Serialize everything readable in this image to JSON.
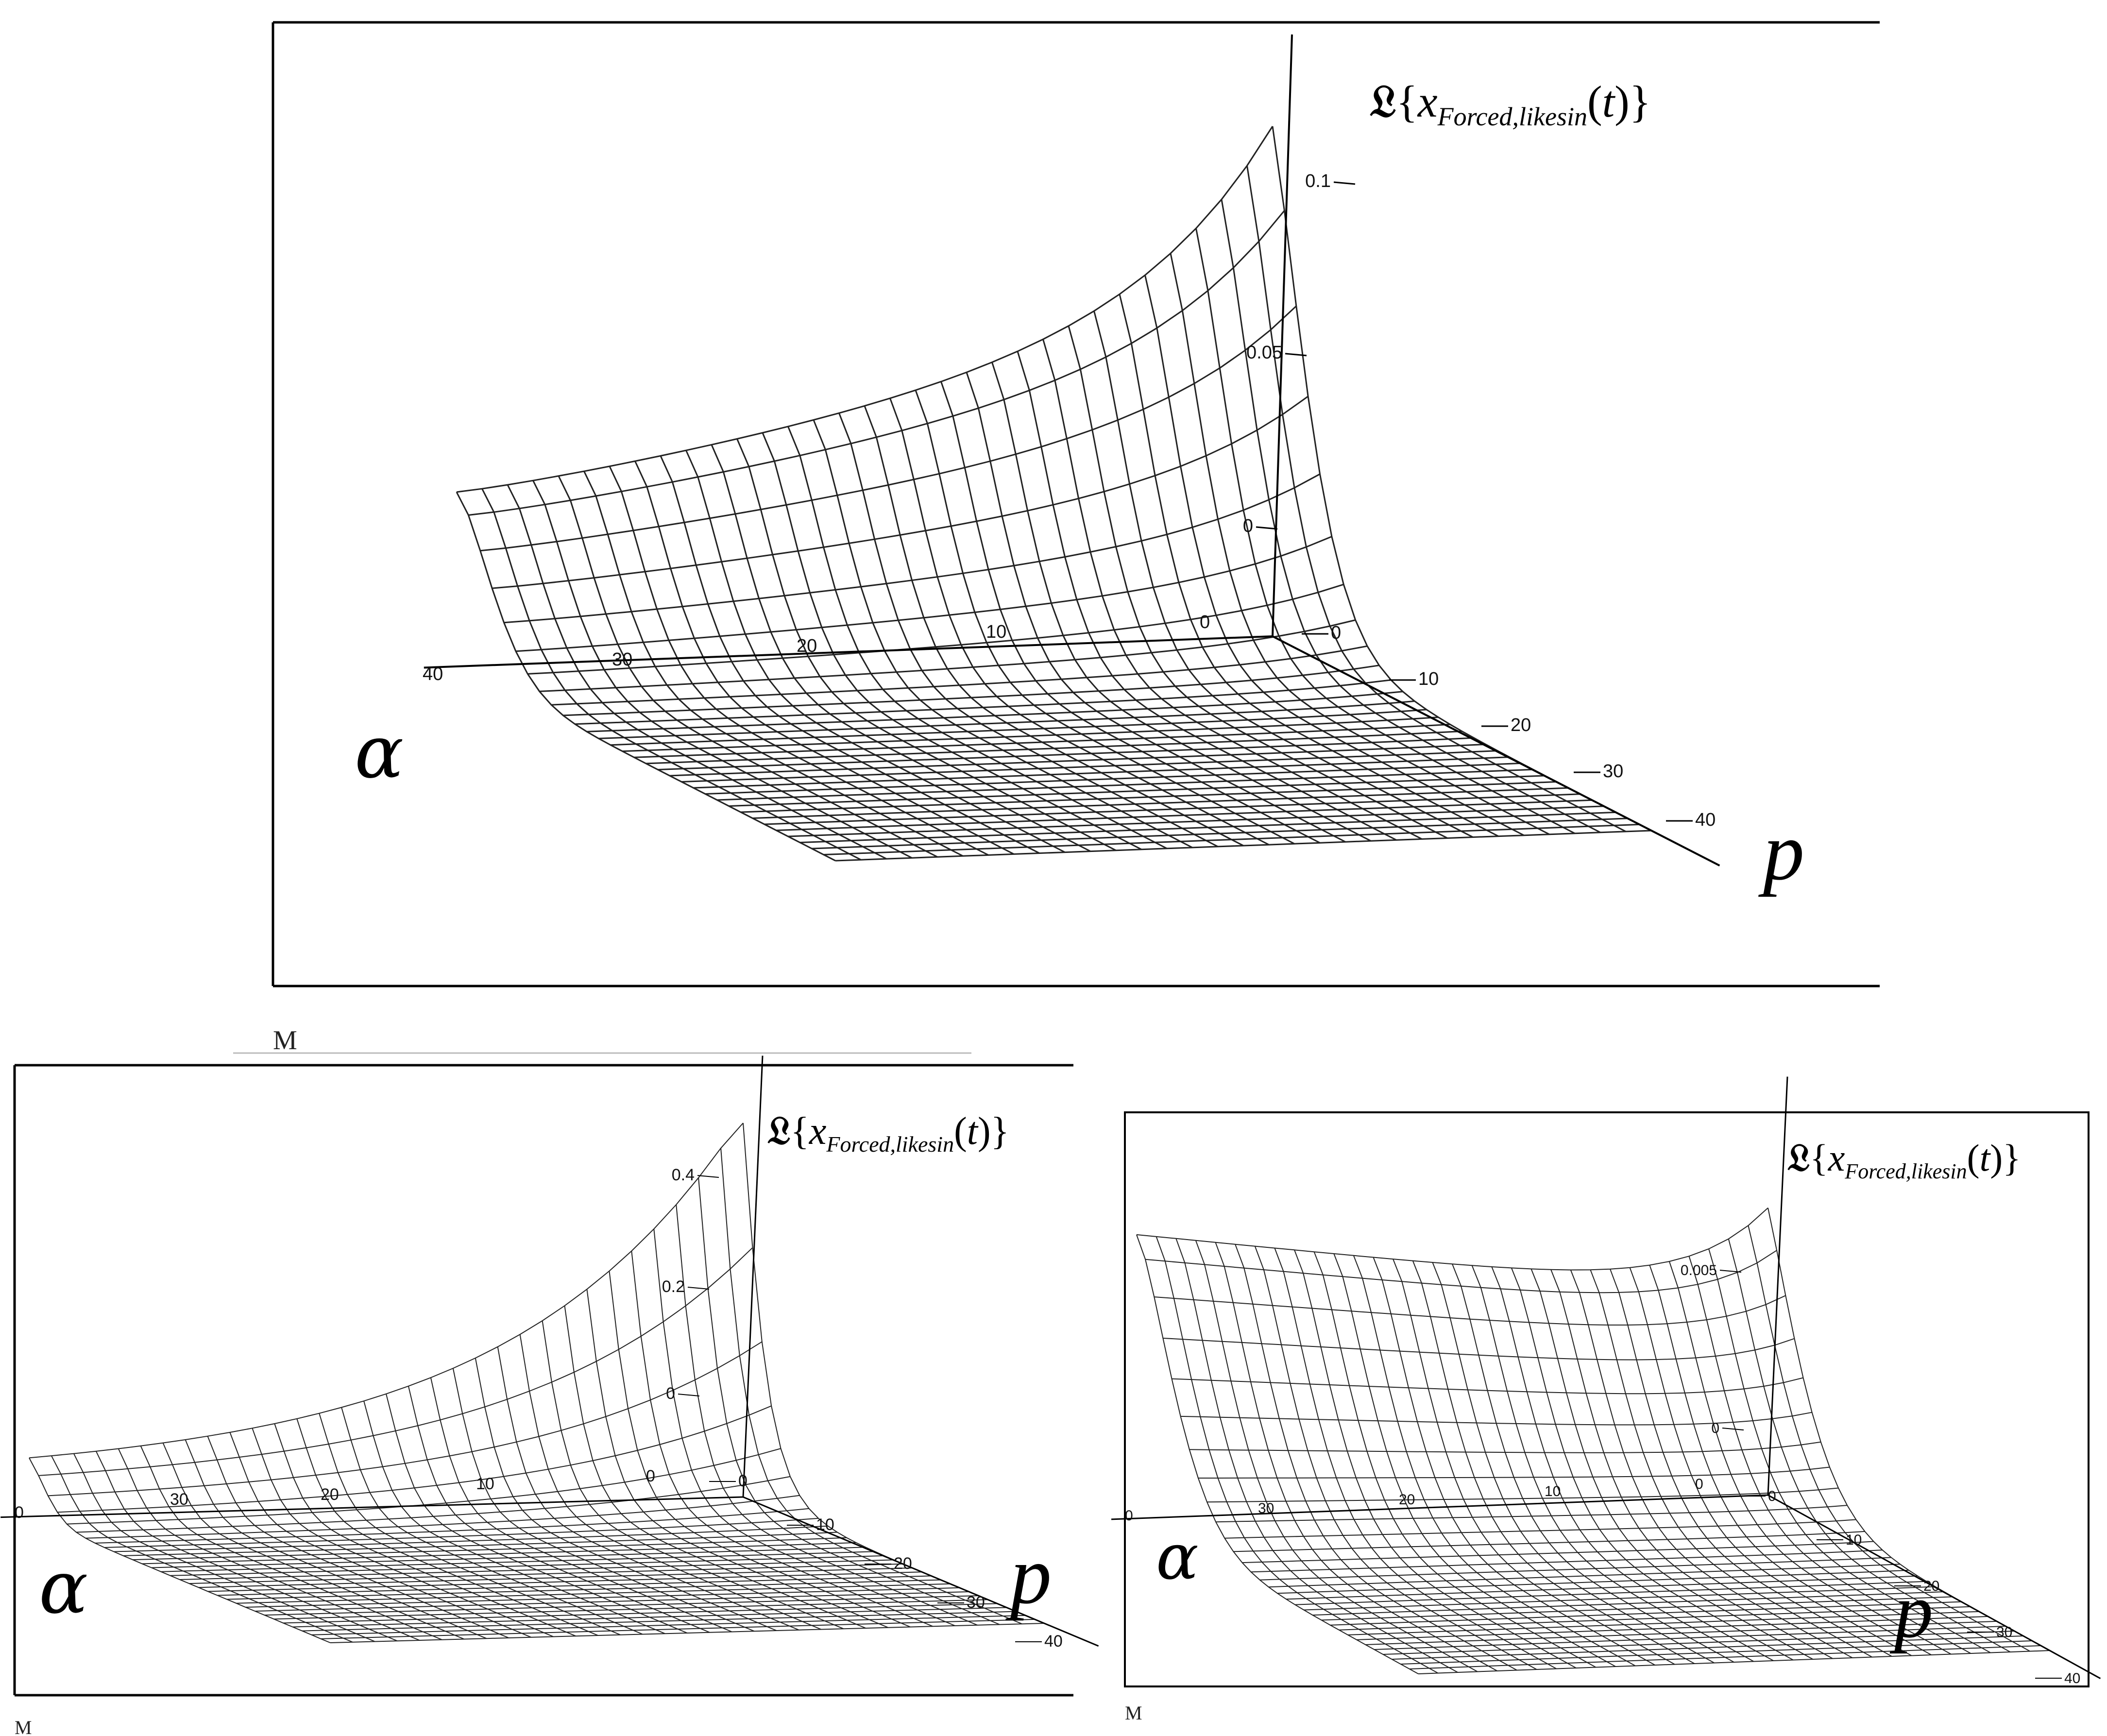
{
  "chart_data": [
    {
      "type": "surface",
      "z_label": "𝔏{x_Forced,likesin(t)}",
      "alpha_label": "α",
      "p_label": "p",
      "z_ticks": [
        "0.1",
        "0.05",
        "0"
      ],
      "alpha_ticks": [
        "40",
        "30",
        "20",
        "10",
        "0"
      ],
      "p_ticks": [
        "0",
        "10",
        "20",
        "30",
        "40"
      ],
      "page_marker": "M",
      "z_range": [
        0,
        0.12
      ]
    },
    {
      "type": "surface",
      "z_label": "𝔏{x_Forced,likesin(t)}",
      "alpha_label": "α",
      "p_label": "p",
      "z_ticks": [
        "0.4",
        "0.2",
        "0"
      ],
      "alpha_ticks": [
        "0",
        "30",
        "20",
        "10",
        "0"
      ],
      "p_ticks": [
        "0",
        "10",
        "20",
        "30",
        "40"
      ],
      "page_marker": "M",
      "z_range": [
        0,
        0.45
      ]
    },
    {
      "type": "surface",
      "z_label": "𝔏{x_Forced,likesin(t)}",
      "alpha_label": "α",
      "p_label": "p",
      "z_ticks": [
        "0.005",
        "0"
      ],
      "alpha_ticks": [
        "0",
        "30",
        "20",
        "10",
        "0"
      ],
      "p_ticks": [
        "0",
        "10",
        "20",
        "30",
        "40"
      ],
      "page_marker": "M",
      "z_range": [
        0,
        0.006
      ]
    }
  ]
}
